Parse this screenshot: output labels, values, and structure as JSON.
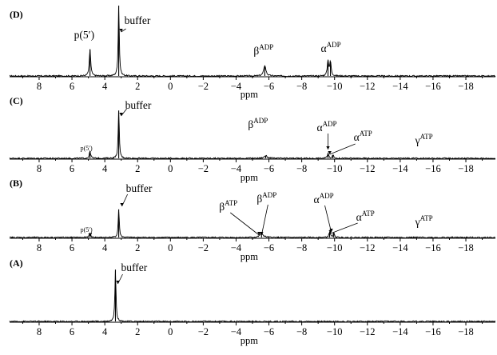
{
  "chart_data": [
    {
      "type": "line",
      "panel": "(D)",
      "x_axis": {
        "label": "ppm",
        "ticks": [
          "8",
          "6",
          "4",
          "2",
          "0",
          "−2",
          "−4",
          "−6",
          "−8",
          "−10",
          "−12",
          "−14",
          "−16",
          "−18"
        ],
        "xlim": [
          9.8,
          -19.8
        ]
      },
      "peaks": [
        {
          "x": 4.9,
          "height": 0.38,
          "width": 0.05
        },
        {
          "x": 3.15,
          "height": 1.0,
          "width": 0.04
        },
        {
          "x": -5.75,
          "height": 0.15,
          "width": 0.08
        },
        {
          "x": -9.6,
          "height": 0.22,
          "width": 0.05
        },
        {
          "x": -9.75,
          "height": 0.2,
          "width": 0.05
        }
      ],
      "annotations": [
        {
          "text": "p(5′)",
          "sup": "",
          "x": 4.9
        },
        {
          "text": "buffer",
          "sup": "",
          "x": 3.15
        },
        {
          "text": "β",
          "sup": "ADP",
          "x": -5.75
        },
        {
          "text": "α",
          "sup": "ADP",
          "x": -9.65
        }
      ]
    },
    {
      "type": "line",
      "panel": "(C)",
      "x_axis": {
        "label": "ppm",
        "ticks": [
          "8",
          "6",
          "4",
          "2",
          "0",
          "−2",
          "−4",
          "−6",
          "−8",
          "−10",
          "−12",
          "−14",
          "−16",
          "−18"
        ],
        "xlim": [
          9.8,
          -19.8
        ]
      },
      "peaks": [
        {
          "x": 4.9,
          "height": 0.1,
          "width": 0.05
        },
        {
          "x": 3.15,
          "height": 0.68,
          "width": 0.04
        },
        {
          "x": -5.8,
          "height": 0.04,
          "width": 0.1
        },
        {
          "x": -9.6,
          "height": 0.07,
          "width": 0.05
        },
        {
          "x": -9.9,
          "height": 0.05,
          "width": 0.05
        }
      ],
      "annotations": [
        {
          "text": "p(5′)",
          "sup": "",
          "x": 4.9
        },
        {
          "text": "buffer",
          "sup": "",
          "x": 3.15
        },
        {
          "text": "β",
          "sup": "ADP",
          "x": -5.8
        },
        {
          "text": "α",
          "sup": "ADP",
          "x": -9.6
        },
        {
          "text": "α",
          "sup": "ATP",
          "x": -9.9
        },
        {
          "text": "γ",
          "sup": "ATP",
          "x": -15.5
        }
      ]
    },
    {
      "type": "line",
      "panel": "(B)",
      "x_axis": {
        "label": "ppm",
        "ticks": [
          "8",
          "6",
          "4",
          "2",
          "0",
          "−2",
          "−4",
          "−6",
          "−8",
          "−10",
          "−12",
          "−14",
          "−16",
          "−18"
        ],
        "xlim": [
          9.8,
          -19.8
        ]
      },
      "peaks": [
        {
          "x": 4.9,
          "height": 0.06,
          "width": 0.05
        },
        {
          "x": 3.15,
          "height": 0.4,
          "width": 0.04
        },
        {
          "x": -5.55,
          "height": 0.06,
          "width": 0.12
        },
        {
          "x": -9.7,
          "height": 0.08,
          "width": 0.05
        },
        {
          "x": -9.95,
          "height": 0.06,
          "width": 0.05
        }
      ],
      "annotations": [
        {
          "text": "p(5′)",
          "sup": "",
          "x": 4.9
        },
        {
          "text": "buffer",
          "sup": "",
          "x": 3.15
        },
        {
          "text": "β",
          "sup": "ATP",
          "x": -5.5
        },
        {
          "text": "β",
          "sup": "ADP",
          "x": -5.65
        },
        {
          "text": "α",
          "sup": "ADP",
          "x": -9.7
        },
        {
          "text": "α",
          "sup": "ATP",
          "x": -9.95
        },
        {
          "text": "γ",
          "sup": "ATP",
          "x": -15.5
        }
      ]
    },
    {
      "type": "line",
      "panel": "(A)",
      "x_axis": {
        "label": "ppm",
        "ticks": [
          "8",
          "6",
          "4",
          "2",
          "0",
          "−2",
          "−4",
          "−6",
          "−8",
          "−10",
          "−12",
          "−14",
          "−16",
          "−18"
        ],
        "xlim": [
          9.8,
          -19.8
        ]
      },
      "peaks": [
        {
          "x": 3.35,
          "height": 0.72,
          "width": 0.04
        }
      ],
      "annotations": [
        {
          "text": "buffer",
          "sup": "",
          "x": 3.35
        }
      ]
    }
  ]
}
